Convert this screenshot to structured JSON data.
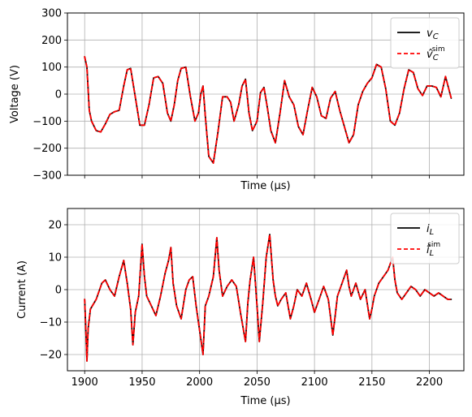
{
  "chart_data": [
    {
      "type": "line",
      "xlabel": "Time (μs)",
      "ylabel": "Voltage (V)",
      "xlim": [
        1885,
        2230
      ],
      "ylim": [
        -300,
        300
      ],
      "x_ticks": [
        1900,
        1950,
        2000,
        2050,
        2100,
        2150,
        2200
      ],
      "y_ticks": [
        300,
        200,
        100,
        0,
        -100,
        -200,
        -300
      ],
      "y_tick_labels": [
        "300",
        "200",
        "100",
        "0",
        "−100",
        "−200",
        "−300"
      ],
      "show_x_tick_labels": false,
      "grid": true,
      "legend_position": "top-right",
      "series": [
        {
          "name": "v_C",
          "legend_main": "v",
          "legend_sub": "C",
          "legend_sup": "",
          "color": "#000000",
          "style": "solid"
        },
        {
          "name": "v̂_C^sim",
          "legend_main": "v̂",
          "legend_sub": "C",
          "legend_sup": "sim",
          "color": "#ff0000",
          "style": "dashed"
        }
      ],
      "x": [
        1900,
        1902,
        1904,
        1906,
        1910,
        1914,
        1918,
        1922,
        1926,
        1930,
        1934,
        1937,
        1940,
        1944,
        1948,
        1952,
        1956,
        1960,
        1964,
        1968,
        1972,
        1975,
        1978,
        1981,
        1984,
        1988,
        1992,
        1996,
        1999,
        2001,
        2003,
        2005,
        2008,
        2012,
        2016,
        2020,
        2024,
        2027,
        2030,
        2034,
        2037,
        2040,
        2043,
        2046,
        2050,
        2053,
        2056,
        2059,
        2062,
        2066,
        2070,
        2074,
        2078,
        2082,
        2086,
        2090,
        2094,
        2098,
        2102,
        2106,
        2110,
        2114,
        2118,
        2122,
        2126,
        2130,
        2134,
        2138,
        2142,
        2146,
        2150,
        2154,
        2158,
        2162,
        2166,
        2170,
        2174,
        2178,
        2182,
        2186,
        2190,
        2194,
        2198,
        2202,
        2206,
        2210,
        2214,
        2219
      ],
      "y": [
        138,
        100,
        -60,
        -100,
        -135,
        -140,
        -110,
        -75,
        -65,
        -60,
        30,
        90,
        95,
        -10,
        -115,
        -115,
        -40,
        60,
        65,
        40,
        -70,
        -100,
        -40,
        50,
        95,
        100,
        -10,
        -100,
        -70,
        0,
        30,
        -80,
        -230,
        -255,
        -140,
        -10,
        -10,
        -30,
        -100,
        -40,
        30,
        55,
        -70,
        -135,
        -100,
        5,
        25,
        -50,
        -135,
        -180,
        -70,
        50,
        -10,
        -40,
        -120,
        -150,
        -60,
        25,
        -10,
        -80,
        -90,
        -15,
        10,
        -60,
        -120,
        -180,
        -150,
        -40,
        10,
        40,
        60,
        110,
        100,
        20,
        -100,
        -115,
        -70,
        20,
        90,
        80,
        20,
        -5,
        30,
        30,
        25,
        -10,
        65,
        -15
      ]
    },
    {
      "type": "line",
      "xlabel": "Time (μs)",
      "ylabel": "Current (A)",
      "xlim": [
        1885,
        2230
      ],
      "ylim": [
        -25,
        25
      ],
      "x_ticks": [
        1900,
        1950,
        2000,
        2050,
        2100,
        2150,
        2200
      ],
      "x_tick_labels": [
        "1900",
        "1950",
        "2000",
        "2050",
        "2100",
        "2150",
        "2200"
      ],
      "y_ticks": [
        20,
        10,
        0,
        -10,
        -20
      ],
      "y_tick_labels": [
        "20",
        "10",
        "0",
        "−10",
        "−20"
      ],
      "show_x_tick_labels": true,
      "grid": true,
      "legend_position": "top-right",
      "series": [
        {
          "name": "i_L",
          "legend_main": "i",
          "legend_sub": "L",
          "legend_sup": "",
          "color": "#000000",
          "style": "solid"
        },
        {
          "name": "î_L^sim",
          "legend_main": "î",
          "legend_sub": "L",
          "legend_sup": "sim",
          "color": "#ff0000",
          "style": "dashed"
        }
      ],
      "x": [
        1900,
        1901,
        1902,
        1903,
        1905,
        1910,
        1915,
        1918,
        1922,
        1926,
        1930,
        1934,
        1937,
        1940,
        1942,
        1944,
        1947,
        1950,
        1952,
        1954,
        1958,
        1962,
        1966,
        1970,
        1973,
        1975,
        1977,
        1980,
        1984,
        1988,
        1991,
        1994,
        1997,
        2001,
        2003,
        2005,
        2008,
        2012,
        2015,
        2017,
        2020,
        2024,
        2028,
        2032,
        2036,
        2040,
        2042,
        2044,
        2047,
        2050,
        2052,
        2055,
        2058,
        2061,
        2064,
        2066,
        2068,
        2071,
        2075,
        2079,
        2082,
        2085,
        2089,
        2093,
        2097,
        2100,
        2104,
        2108,
        2112,
        2116,
        2118,
        2120,
        2124,
        2128,
        2130,
        2132,
        2136,
        2140,
        2144,
        2148,
        2150,
        2152,
        2156,
        2160,
        2164,
        2168,
        2170,
        2172,
        2176,
        2180,
        2184,
        2188,
        2192,
        2196,
        2200,
        2204,
        2208,
        2212,
        2216,
        2219
      ],
      "y": [
        -3,
        -12,
        -22,
        -12,
        -6,
        -3,
        2,
        3,
        0,
        -2,
        4,
        9,
        2,
        -6,
        -17,
        -7,
        -2,
        14,
        4,
        -2,
        -5,
        -8,
        -2,
        5,
        9,
        13,
        2,
        -5,
        -9,
        0,
        3,
        4,
        -5,
        -15,
        -20,
        -5,
        -2,
        4,
        16,
        6,
        -2,
        1,
        3,
        1,
        -8,
        -16,
        -4,
        3,
        10,
        -5,
        -16,
        -4,
        10,
        17,
        3,
        -2,
        -5,
        -3,
        -1,
        -9,
        -5,
        0,
        -2,
        2,
        -3,
        -7,
        -3,
        1,
        -3,
        -14,
        -8,
        -2,
        2,
        6,
        1,
        -2,
        2,
        -3,
        0,
        -9,
        -6,
        -2,
        2,
        4,
        6,
        10,
        3,
        -1,
        -3,
        -1,
        1,
        0,
        -2,
        0,
        -1,
        -2,
        -1,
        -2,
        -3,
        -3
      ]
    }
  ]
}
